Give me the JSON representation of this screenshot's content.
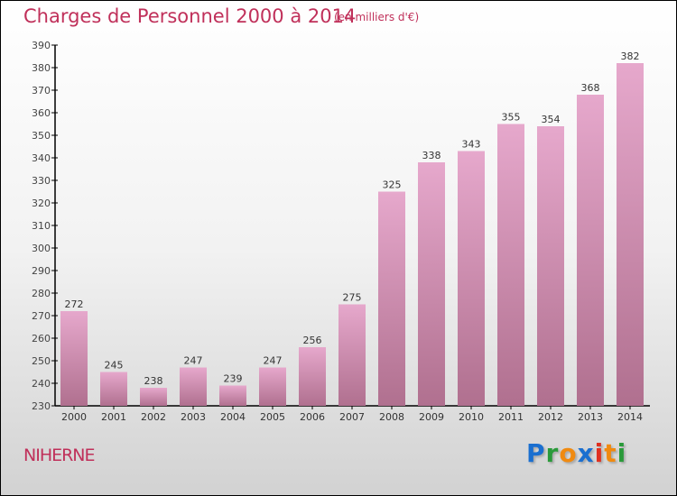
{
  "chart_data": {
    "type": "bar",
    "title": "Charges de Personnel 2000 à 2014",
    "subtitle": "(en milliers d'€)",
    "categories": [
      "2000",
      "2001",
      "2002",
      "2003",
      "2004",
      "2005",
      "2006",
      "2007",
      "2008",
      "2009",
      "2010",
      "2011",
      "2012",
      "2013",
      "2014"
    ],
    "values": [
      272,
      245,
      238,
      247,
      239,
      247,
      256,
      275,
      325,
      338,
      343,
      355,
      354,
      368,
      382
    ],
    "ylim": [
      230,
      390
    ],
    "yticks": [
      230,
      240,
      250,
      260,
      270,
      280,
      290,
      300,
      310,
      320,
      330,
      340,
      350,
      360,
      370,
      380,
      390
    ],
    "xlabel": "",
    "ylabel": "",
    "grid": false,
    "bar_color_top": "#e6a8cc",
    "bar_color_bottom": "#b0708f"
  },
  "location": "NIHERNE",
  "logo": {
    "letters": [
      "P",
      "r",
      "o",
      "x",
      "i",
      "t",
      "i"
    ],
    "colors": [
      "#1a6fd0",
      "#2a9a3a",
      "#f08a10",
      "#1a6fd0",
      "#e03020",
      "#f08a10",
      "#2a9a3a"
    ]
  }
}
